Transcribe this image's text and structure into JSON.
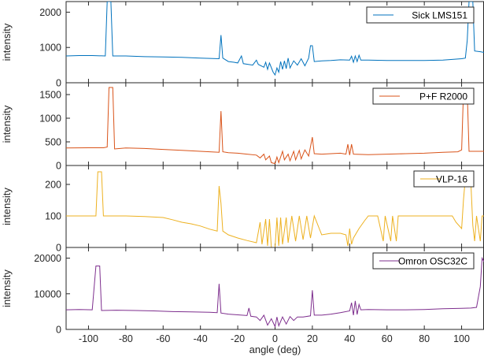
{
  "chart_data": [
    {
      "type": "line",
      "series_name": "Sick LMS151",
      "color": "#0072BD",
      "ylabel": "intensity",
      "ylim": [
        0,
        2300
      ],
      "yticks": [
        0,
        1000,
        2000
      ],
      "points": [
        [
          -112,
          760
        ],
        [
          -105,
          770
        ],
        [
          -98,
          770
        ],
        [
          -91,
          760
        ],
        [
          -90,
          2300
        ],
        [
          -88,
          2300
        ],
        [
          -87,
          760
        ],
        [
          -80,
          760
        ],
        [
          -70,
          740
        ],
        [
          -60,
          730
        ],
        [
          -50,
          720
        ],
        [
          -40,
          700
        ],
        [
          -35,
          690
        ],
        [
          -30,
          680
        ],
        [
          -29,
          1350
        ],
        [
          -28,
          700
        ],
        [
          -25,
          600
        ],
        [
          -22,
          580
        ],
        [
          -20,
          560
        ],
        [
          -18,
          760
        ],
        [
          -17,
          540
        ],
        [
          -12,
          500
        ],
        [
          -10,
          640
        ],
        [
          -9,
          520
        ],
        [
          -6,
          440
        ],
        [
          -5,
          580
        ],
        [
          -4,
          380
        ],
        [
          -3,
          560
        ],
        [
          -1,
          300
        ],
        [
          0,
          220
        ],
        [
          1,
          420
        ],
        [
          2,
          300
        ],
        [
          3,
          600
        ],
        [
          4,
          380
        ],
        [
          5,
          620
        ],
        [
          6,
          400
        ],
        [
          7,
          700
        ],
        [
          8,
          420
        ],
        [
          10,
          620
        ],
        [
          12,
          500
        ],
        [
          14,
          680
        ],
        [
          16,
          480
        ],
        [
          18,
          700
        ],
        [
          19,
          1050
        ],
        [
          20,
          1050
        ],
        [
          21,
          600
        ],
        [
          25,
          620
        ],
        [
          30,
          630
        ],
        [
          35,
          650
        ],
        [
          40,
          640
        ],
        [
          41,
          750
        ],
        [
          42,
          580
        ],
        [
          43,
          760
        ],
        [
          44,
          600
        ],
        [
          45,
          780
        ],
        [
          46,
          640
        ],
        [
          50,
          640
        ],
        [
          60,
          630
        ],
        [
          70,
          630
        ],
        [
          80,
          630
        ],
        [
          90,
          640
        ],
        [
          100,
          680
        ],
        [
          102,
          700
        ],
        [
          103,
          1200
        ],
        [
          104,
          2300
        ],
        [
          106,
          2300
        ],
        [
          107,
          900
        ],
        [
          110,
          880
        ],
        [
          112,
          860
        ]
      ]
    },
    {
      "type": "line",
      "series_name": "P+F R2000",
      "color": "#D95319",
      "ylabel": "intensity",
      "ylim": [
        0,
        1750
      ],
      "yticks": [
        0,
        500,
        1000,
        1500
      ],
      "points": [
        [
          -112,
          370
        ],
        [
          -100,
          375
        ],
        [
          -92,
          375
        ],
        [
          -90,
          390
        ],
        [
          -89,
          1650
        ],
        [
          -87,
          1650
        ],
        [
          -86,
          350
        ],
        [
          -80,
          370
        ],
        [
          -70,
          360
        ],
        [
          -60,
          340
        ],
        [
          -50,
          320
        ],
        [
          -40,
          300
        ],
        [
          -35,
          290
        ],
        [
          -30,
          280
        ],
        [
          -29,
          1150
        ],
        [
          -28,
          290
        ],
        [
          -25,
          270
        ],
        [
          -20,
          260
        ],
        [
          -15,
          240
        ],
        [
          -10,
          220
        ],
        [
          -8,
          160
        ],
        [
          -6,
          240
        ],
        [
          -5,
          120
        ],
        [
          -3,
          200
        ],
        [
          -2,
          60
        ],
        [
          0,
          40
        ],
        [
          1,
          180
        ],
        [
          2,
          60
        ],
        [
          4,
          300
        ],
        [
          5,
          120
        ],
        [
          7,
          240
        ],
        [
          8,
          100
        ],
        [
          10,
          300
        ],
        [
          11,
          120
        ],
        [
          13,
          320
        ],
        [
          14,
          140
        ],
        [
          16,
          330
        ],
        [
          18,
          200
        ],
        [
          20,
          600
        ],
        [
          21,
          250
        ],
        [
          25,
          240
        ],
        [
          30,
          250
        ],
        [
          35,
          260
        ],
        [
          38,
          240
        ],
        [
          39,
          450
        ],
        [
          40,
          220
        ],
        [
          41,
          450
        ],
        [
          42,
          240
        ],
        [
          50,
          230
        ],
        [
          60,
          240
        ],
        [
          70,
          250
        ],
        [
          80,
          260
        ],
        [
          90,
          280
        ],
        [
          98,
          290
        ],
        [
          100,
          330
        ],
        [
          101,
          1550
        ],
        [
          103,
          1550
        ],
        [
          104,
          300
        ],
        [
          108,
          300
        ],
        [
          112,
          300
        ]
      ]
    },
    {
      "type": "line",
      "series_name": "VLP-16",
      "color": "#EDB120",
      "ylabel": "intensity",
      "ylim": [
        0,
        260
      ],
      "yticks": [
        0,
        100,
        200
      ],
      "points": [
        [
          -112,
          100
        ],
        [
          -105,
          100
        ],
        [
          -96,
          100
        ],
        [
          -95,
          240
        ],
        [
          -93,
          240
        ],
        [
          -92,
          100
        ],
        [
          -80,
          100
        ],
        [
          -70,
          98
        ],
        [
          -60,
          95
        ],
        [
          -55,
          88
        ],
        [
          -50,
          80
        ],
        [
          -45,
          75
        ],
        [
          -40,
          68
        ],
        [
          -35,
          58
        ],
        [
          -31,
          52
        ],
        [
          -30,
          195
        ],
        [
          -29,
          140
        ],
        [
          -28,
          52
        ],
        [
          -25,
          40
        ],
        [
          -20,
          30
        ],
        [
          -15,
          22
        ],
        [
          -10,
          15
        ],
        [
          -8,
          80
        ],
        [
          -7,
          10
        ],
        [
          -5,
          90
        ],
        [
          -4,
          5
        ],
        [
          -3,
          90
        ],
        [
          -2,
          0
        ],
        [
          0,
          0
        ],
        [
          1,
          95
        ],
        [
          2,
          5
        ],
        [
          3,
          95
        ],
        [
          4,
          10
        ],
        [
          6,
          95
        ],
        [
          7,
          15
        ],
        [
          9,
          100
        ],
        [
          11,
          20
        ],
        [
          13,
          100
        ],
        [
          15,
          25
        ],
        [
          17,
          100
        ],
        [
          19,
          30
        ],
        [
          21,
          100
        ],
        [
          25,
          40
        ],
        [
          30,
          45
        ],
        [
          35,
          45
        ],
        [
          38,
          40
        ],
        [
          39,
          5
        ],
        [
          40,
          60
        ],
        [
          41,
          10
        ],
        [
          42,
          30
        ],
        [
          45,
          60
        ],
        [
          48,
          85
        ],
        [
          50,
          100
        ],
        [
          55,
          100
        ],
        [
          58,
          20
        ],
        [
          59,
          100
        ],
        [
          62,
          20
        ],
        [
          63,
          100
        ],
        [
          65,
          20
        ],
        [
          66,
          100
        ],
        [
          70,
          100
        ],
        [
          80,
          100
        ],
        [
          90,
          100
        ],
        [
          95,
          100
        ],
        [
          97,
          80
        ],
        [
          100,
          60
        ],
        [
          101,
          150
        ],
        [
          102,
          220
        ],
        [
          104,
          240
        ],
        [
          105,
          200
        ],
        [
          106,
          70
        ],
        [
          107,
          20
        ],
        [
          108,
          100
        ],
        [
          110,
          20
        ],
        [
          111,
          100
        ],
        [
          112,
          100
        ]
      ]
    },
    {
      "type": "line",
      "series_name": "Omron OSC32C",
      "color": "#7E2F8E",
      "xlabel": "angle (deg)",
      "ylabel": "intensity",
      "ylim": [
        0,
        23000
      ],
      "yticks": [
        0,
        10000,
        20000
      ],
      "xlim": [
        -112,
        112
      ],
      "xticks": [
        -100,
        -80,
        -60,
        -40,
        -20,
        0,
        20,
        40,
        60,
        80,
        100
      ],
      "points": [
        [
          -112,
          5500
        ],
        [
          -105,
          5600
        ],
        [
          -98,
          5500
        ],
        [
          -96,
          17800
        ],
        [
          -94,
          17800
        ],
        [
          -93,
          5300
        ],
        [
          -85,
          5400
        ],
        [
          -75,
          5300
        ],
        [
          -65,
          5200
        ],
        [
          -55,
          5000
        ],
        [
          -45,
          4900
        ],
        [
          -35,
          4800
        ],
        [
          -31,
          4700
        ],
        [
          -30,
          12800
        ],
        [
          -29,
          4600
        ],
        [
          -25,
          4300
        ],
        [
          -20,
          4100
        ],
        [
          -15,
          3900
        ],
        [
          -14,
          6000
        ],
        [
          -13,
          3700
        ],
        [
          -10,
          3500
        ],
        [
          -8,
          2500
        ],
        [
          -6,
          4000
        ],
        [
          -4,
          1200
        ],
        [
          -2,
          3000
        ],
        [
          0,
          800
        ],
        [
          1,
          3500
        ],
        [
          2,
          1000
        ],
        [
          4,
          3500
        ],
        [
          6,
          1500
        ],
        [
          8,
          3600
        ],
        [
          10,
          2500
        ],
        [
          12,
          3500
        ],
        [
          15,
          3500
        ],
        [
          19,
          3800
        ],
        [
          20,
          11000
        ],
        [
          21,
          4000
        ],
        [
          25,
          4000
        ],
        [
          30,
          4300
        ],
        [
          35,
          4700
        ],
        [
          40,
          5200
        ],
        [
          41,
          7500
        ],
        [
          42,
          4000
        ],
        [
          43,
          8000
        ],
        [
          44,
          4200
        ],
        [
          45,
          7000
        ],
        [
          46,
          5500
        ],
        [
          50,
          5600
        ],
        [
          60,
          5500
        ],
        [
          70,
          5500
        ],
        [
          80,
          5600
        ],
        [
          90,
          5800
        ],
        [
          100,
          5900
        ],
        [
          105,
          6000
        ],
        [
          108,
          6200
        ],
        [
          110,
          12000
        ],
        [
          111,
          20000
        ],
        [
          112,
          19000
        ]
      ]
    }
  ]
}
